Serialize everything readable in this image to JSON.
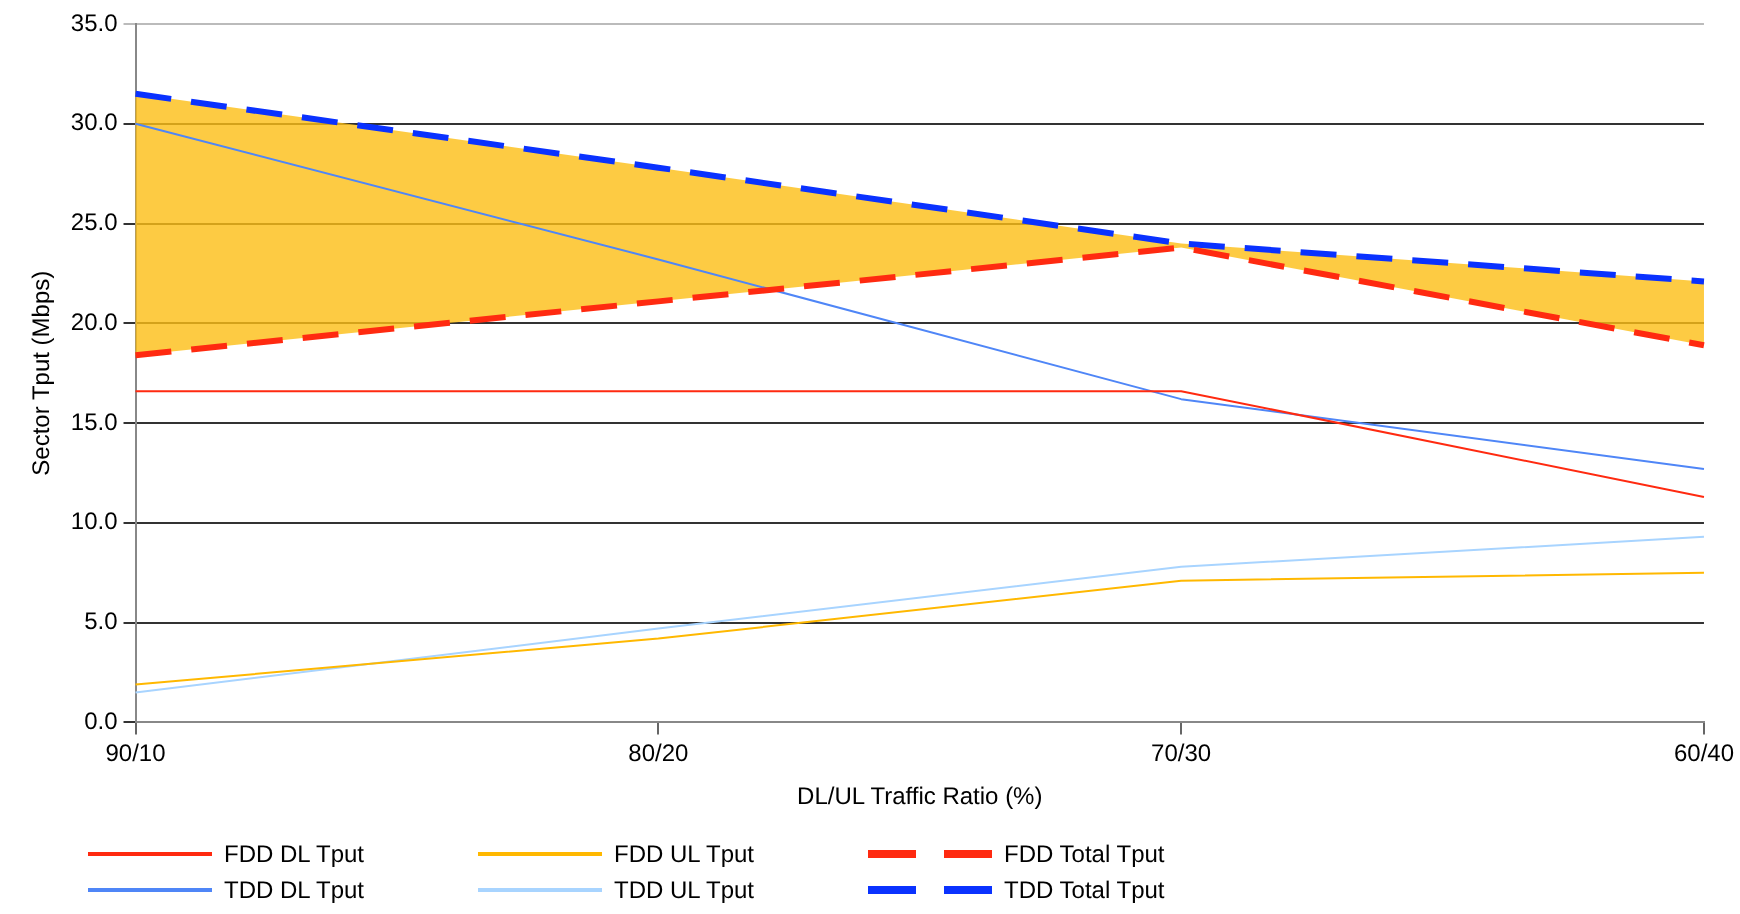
{
  "chart_data": {
    "type": "line",
    "xlabel": "DL/UL Traffic Ratio (%)",
    "ylabel": "Sector Tput (Mbps)",
    "categories": [
      "90/10",
      "80/20",
      "70/30",
      "60/40"
    ],
    "ylim": [
      0,
      35
    ],
    "yticks": [
      {
        "value": 0,
        "label": "0.0"
      },
      {
        "value": 5,
        "label": "5.0"
      },
      {
        "value": 10,
        "label": "10.0"
      },
      {
        "value": 15,
        "label": "15.0"
      },
      {
        "value": 20,
        "label": "20.0"
      },
      {
        "value": 25,
        "label": "25.0"
      },
      {
        "value": 30,
        "label": "30.0"
      },
      {
        "value": 35,
        "label": "35.0"
      }
    ],
    "grid": "y",
    "legend": "bottom",
    "marker": "none",
    "series": [
      {
        "name": "FDD DL Tput",
        "color": "#ff2a10",
        "values": [
          16.6,
          16.6,
          16.6,
          11.3
        ],
        "line_style": "solid"
      },
      {
        "name": "FDD UL Tput",
        "color": "#ffb800",
        "values": [
          1.9,
          4.2,
          7.1,
          7.5
        ],
        "line_style": "solid"
      },
      {
        "name": "FDD Total Tput",
        "color": "#ff2a10",
        "values": [
          18.4,
          21.1,
          23.8,
          18.9
        ],
        "line_style": "dashed"
      },
      {
        "name": "TDD DL Tput",
        "color": "#4f86f7",
        "values": [
          30.0,
          23.2,
          16.2,
          12.7
        ],
        "line_style": "solid"
      },
      {
        "name": "TDD UL Tput",
        "color": "#a8d4ff",
        "values": [
          1.5,
          4.7,
          7.8,
          9.3
        ],
        "line_style": "solid"
      },
      {
        "name": "TDD Total Tput",
        "color": "#0a32ff",
        "values": [
          31.5,
          27.8,
          24.0,
          22.1
        ],
        "line_style": "dashed",
        "lower": [
          18.4,
          21.1,
          23.8,
          18.9
        ],
        "upper": [
          31.5,
          27.8,
          24.0,
          22.1
        ]
      }
    ]
  }
}
